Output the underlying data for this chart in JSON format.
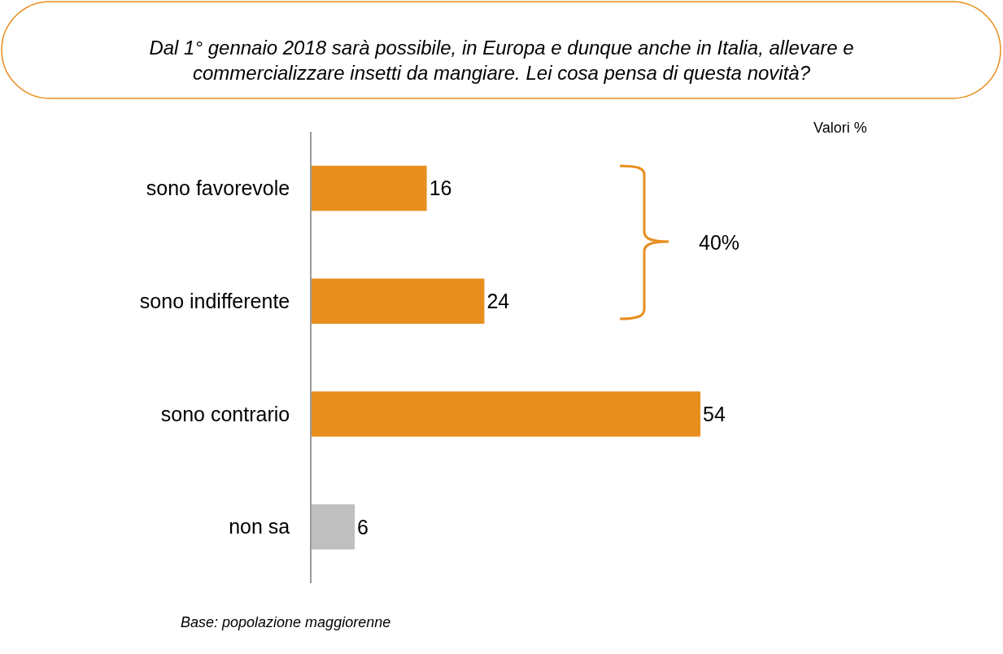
{
  "chart_data": {
    "type": "bar",
    "orientation": "horizontal",
    "title": "Dal 1° gennaio 2018 sarà possibile, in Europa e dunque anche in Italia, allevare e commercializzare insetti da mangiare. Lei cosa pensa di questa novità?",
    "categories": [
      "sono favorevole",
      "sono indifferente",
      "sono contrario",
      "non sa"
    ],
    "values": [
      16,
      24,
      54,
      6
    ],
    "colors": [
      "#e88e1f",
      "#e88e1f",
      "#e88e1f",
      "#bfbfbf"
    ],
    "data_labels": true,
    "annotations": [
      "Valori %",
      "40%",
      "Base: popolazione maggiorenne"
    ]
  }
}
